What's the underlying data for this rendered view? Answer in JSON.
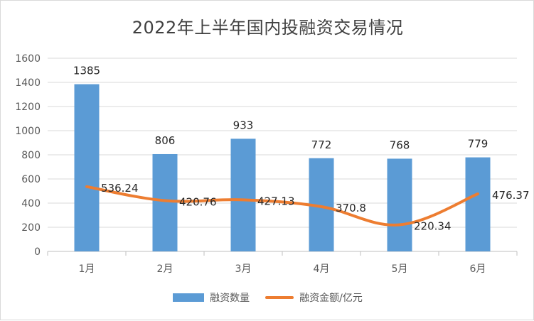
{
  "colors": {
    "bar": "#5b9bd5",
    "line": "#ed7d31",
    "grid": "#d9d9d9",
    "axis": "#bfbfbf"
  },
  "chart_data": {
    "type": "bar",
    "title": "2022年上半年国内投融资交易情况",
    "categories": [
      "1月",
      "2月",
      "3月",
      "4月",
      "5月",
      "6月"
    ],
    "ylim": [
      0,
      1600
    ],
    "yticks": [
      0,
      200,
      400,
      600,
      800,
      1000,
      1200,
      1400,
      1600
    ],
    "grid": true,
    "legend_position": "bottom",
    "series": [
      {
        "name": "融资数量",
        "type": "bar",
        "values": [
          1385,
          806,
          933,
          772,
          768,
          779
        ],
        "labels": [
          "1385",
          "806",
          "933",
          "772",
          "768",
          "779"
        ]
      },
      {
        "name": "融资金额/亿元",
        "type": "line",
        "values": [
          536.24,
          420.76,
          427.13,
          370.8,
          220.34,
          476.37
        ],
        "labels": [
          "536.24",
          "420.76",
          "427.13",
          "370.8",
          "220.34",
          "476.37"
        ]
      }
    ]
  }
}
